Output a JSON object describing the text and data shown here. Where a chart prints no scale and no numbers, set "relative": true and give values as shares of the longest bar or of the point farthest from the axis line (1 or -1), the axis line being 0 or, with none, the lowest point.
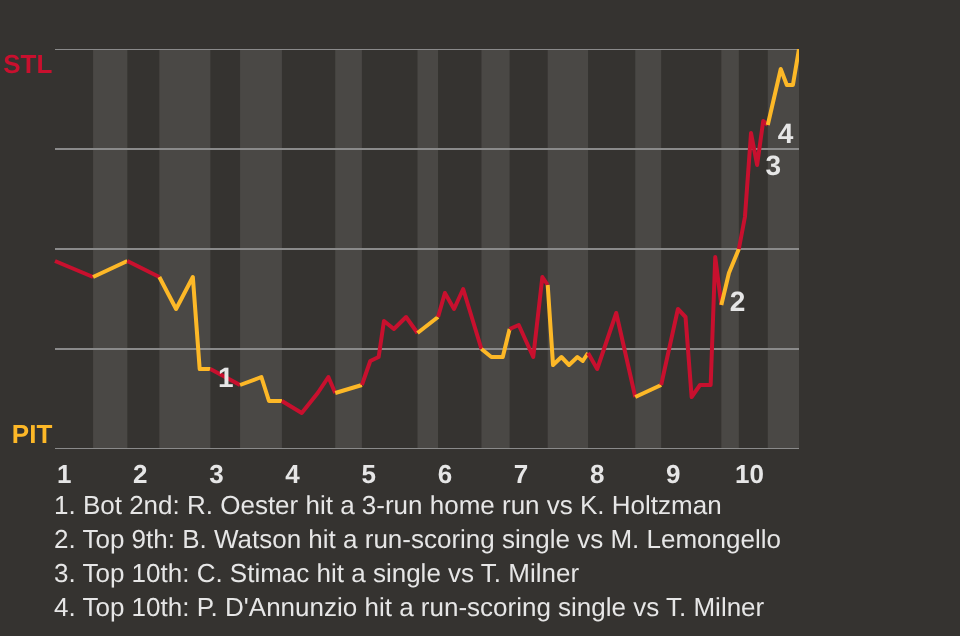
{
  "chart_data": {
    "type": "line",
    "relative": true,
    "xlim": [
      0.88,
      10.65
    ],
    "xticks": [
      1,
      2,
      3,
      4,
      5,
      6,
      7,
      8,
      9,
      10
    ],
    "grid": "y",
    "marker": "none",
    "line_style": "solid",
    "series": [
      {
        "name": "STL",
        "color": "#c8102e",
        "x": [
          0.88,
          1.38
        ],
        "values": [
          0.47,
          0.43
        ]
      },
      {
        "name": "PIT",
        "color": "#fdb827",
        "x": [
          1.38,
          1.83
        ],
        "values": [
          0.43,
          0.47
        ]
      },
      {
        "color": "#c8102e",
        "x": [
          1.83,
          2.25
        ],
        "values": [
          0.47,
          0.43
        ]
      },
      {
        "color": "#fdb827",
        "x": [
          2.25,
          2.47,
          2.69,
          2.78,
          2.92
        ],
        "values": [
          0.43,
          0.35,
          0.43,
          0.2,
          0.2
        ]
      },
      {
        "color": "#c8102e",
        "x": [
          2.92,
          3.31
        ],
        "values": [
          0.2,
          0.16
        ]
      },
      {
        "color": "#fdb827",
        "x": [
          3.31,
          3.59,
          3.69,
          3.86
        ],
        "values": [
          0.16,
          0.18,
          0.12,
          0.12
        ]
      },
      {
        "color": "#c8102e",
        "x": [
          3.86,
          4.12,
          4.33,
          4.47,
          4.56
        ],
        "values": [
          0.12,
          0.09,
          0.14,
          0.18,
          0.14
        ]
      },
      {
        "color": "#fdb827",
        "x": [
          4.56,
          4.91
        ],
        "values": [
          0.14,
          0.16
        ]
      },
      {
        "color": "#c8102e",
        "x": [
          4.91,
          5.02,
          5.13,
          5.2,
          5.33,
          5.49,
          5.64
        ],
        "values": [
          0.16,
          0.22,
          0.23,
          0.32,
          0.3,
          0.33,
          0.29
        ]
      },
      {
        "color": "#fdb827",
        "x": [
          5.64,
          5.91
        ],
        "values": [
          0.29,
          0.33
        ]
      },
      {
        "color": "#c8102e",
        "x": [
          5.91,
          6.0,
          6.12,
          6.24,
          6.48
        ],
        "values": [
          0.33,
          0.39,
          0.35,
          0.4,
          0.25
        ]
      },
      {
        "color": "#fdb827",
        "x": [
          6.48,
          6.61,
          6.76,
          6.85
        ],
        "values": [
          0.25,
          0.23,
          0.23,
          0.3
        ]
      },
      {
        "color": "#c8102e",
        "x": [
          6.85,
          6.97,
          7.16,
          7.28,
          7.35
        ],
        "values": [
          0.3,
          0.31,
          0.23,
          0.43,
          0.41
        ]
      },
      {
        "color": "#fdb827",
        "x": [
          7.35,
          7.42,
          7.53,
          7.63,
          7.74,
          7.81,
          7.88
        ],
        "values": [
          0.41,
          0.21,
          0.23,
          0.21,
          0.23,
          0.22,
          0.24
        ]
      },
      {
        "color": "#c8102e",
        "x": [
          7.88,
          8.0,
          8.25,
          8.5
        ],
        "values": [
          0.24,
          0.2,
          0.34,
          0.13
        ]
      },
      {
        "color": "#fdb827",
        "x": [
          8.5,
          8.84
        ],
        "values": [
          0.13,
          0.16
        ]
      },
      {
        "color": "#c8102e",
        "x": [
          8.84,
          9.06,
          9.16,
          9.24,
          9.35,
          9.49,
          9.55,
          9.63
        ],
        "values": [
          0.16,
          0.35,
          0.33,
          0.13,
          0.16,
          0.16,
          0.48,
          0.36
        ]
      },
      {
        "color": "#fdb827",
        "x": [
          9.63,
          9.73,
          9.86
        ],
        "values": [
          0.36,
          0.44,
          0.5
        ]
      },
      {
        "color": "#c8102e",
        "x": [
          9.86,
          9.94,
          10.02,
          10.1,
          10.18,
          10.24
        ],
        "values": [
          0.5,
          0.58,
          0.79,
          0.71,
          0.82,
          0.81
        ]
      },
      {
        "color": "#fdb827",
        "x": [
          10.24,
          10.41,
          10.49,
          10.57,
          10.65
        ],
        "values": [
          0.81,
          0.95,
          0.91,
          0.91,
          1.0
        ]
      }
    ],
    "bands": [
      {
        "axis": "x",
        "from": 1.38,
        "to": 1.83,
        "color": "#4a4845"
      },
      {
        "axis": "x",
        "from": 2.25,
        "to": 2.92,
        "color": "#4a4845"
      },
      {
        "axis": "x",
        "from": 3.31,
        "to": 3.86,
        "color": "#4a4845"
      },
      {
        "axis": "x",
        "from": 4.56,
        "to": 4.91,
        "color": "#4a4845"
      },
      {
        "axis": "x",
        "from": 5.64,
        "to": 5.91,
        "color": "#4a4845"
      },
      {
        "axis": "x",
        "from": 6.48,
        "to": 6.85,
        "color": "#4a4845"
      },
      {
        "axis": "x",
        "from": 7.35,
        "to": 7.88,
        "color": "#4a4845"
      },
      {
        "axis": "x",
        "from": 8.5,
        "to": 8.84,
        "color": "#4a4845"
      },
      {
        "axis": "x",
        "from": 9.63,
        "to": 9.86,
        "color": "#4a4845"
      },
      {
        "axis": "x",
        "from": 10.24,
        "to": 10.65,
        "color": "#4a4845"
      }
    ],
    "annotations": [
      {
        "text": "1",
        "x": 2.89
      },
      {
        "text": "2",
        "x": 9.61
      },
      {
        "text": "3",
        "x": 10.08
      },
      {
        "text": "4",
        "x": 10.24
      },
      "1. Bot 2nd: R. Oester hit a 3-run home run vs K. Holtzman",
      "2. Top 9th: B. Watson hit a run-scoring single vs M. Lemongello",
      "3. Top 10th: C. Stimac hit a single vs T. Milner",
      "4. Top 10th: P. D'Annunzio hit a run-scoring single vs T. Milner"
    ]
  }
}
